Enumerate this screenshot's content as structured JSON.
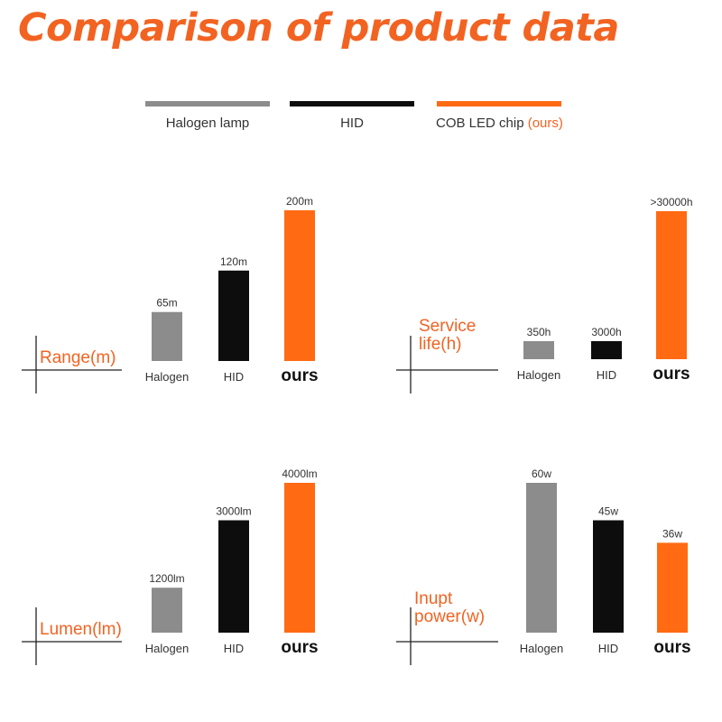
{
  "title": "Comparison of product data",
  "colors": {
    "halogen": "#8C8C8C",
    "hid": "#0D0D0D",
    "ours": "#FF6A13",
    "accent": "#F26322"
  },
  "legend": [
    {
      "label": "Halogen lamp",
      "note": "",
      "color": "#8C8C8C"
    },
    {
      "label": "HID",
      "note": "",
      "color": "#0D0D0D"
    },
    {
      "label": "COB LED chip",
      "note": "(ours)",
      "color": "#FF6A13"
    }
  ],
  "chart_data": [
    {
      "type": "bar",
      "metric_label": [
        "Range(m)"
      ],
      "categories": [
        "Halogen",
        "HID",
        "ours"
      ],
      "values": [
        65,
        120,
        200
      ],
      "value_labels": [
        "65m",
        "120m",
        "200m"
      ]
    },
    {
      "type": "bar",
      "metric_label": [
        "Service",
        "life(h)"
      ],
      "categories": [
        "Halogen",
        "HID",
        "ours"
      ],
      "values": [
        350,
        3000,
        30000
      ],
      "value_labels": [
        "350h",
        "3000h",
        ">30000h"
      ]
    },
    {
      "type": "bar",
      "metric_label": [
        "Lumen(lm)"
      ],
      "categories": [
        "Halogen",
        "HID",
        "ours"
      ],
      "values": [
        1200,
        3000,
        4000
      ],
      "value_labels": [
        "1200lm",
        "3000lm",
        "4000lm"
      ]
    },
    {
      "type": "bar",
      "metric_label": [
        "Inupt",
        "power(w)"
      ],
      "categories": [
        "Halogen",
        "HID",
        "ours"
      ],
      "values": [
        60,
        45,
        36
      ],
      "value_labels": [
        "60w",
        "45w",
        "36w"
      ]
    }
  ]
}
